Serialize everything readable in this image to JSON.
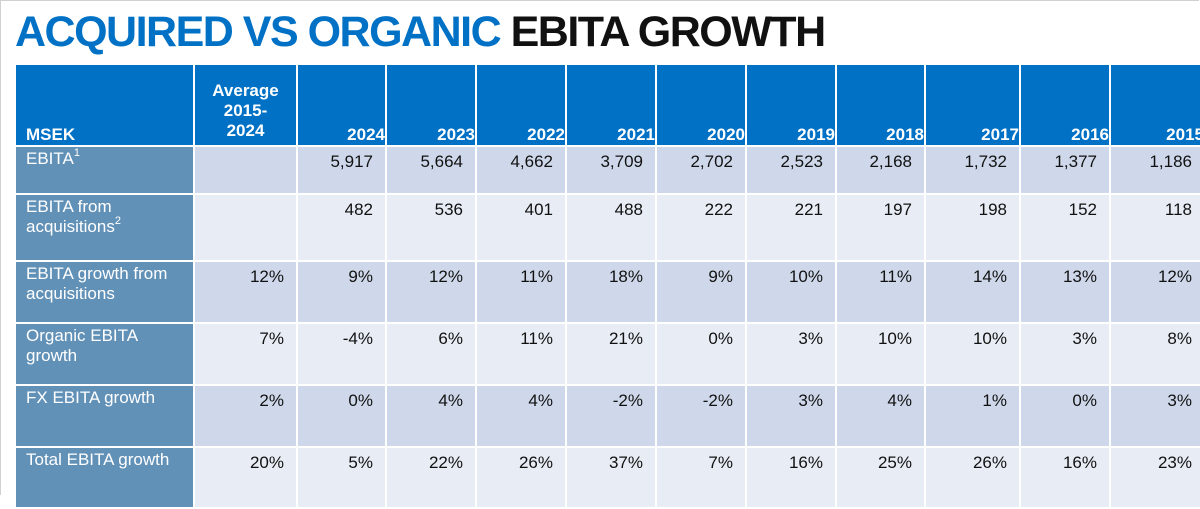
{
  "title": {
    "part1": "ACQUIRED VS ORGANIC",
    "part2": "EBITA GROWTH"
  },
  "colors": {
    "title_blue": "#0071c5",
    "header_bg": "#0071c5",
    "label_bg": "#6291b8",
    "row_dark": "#cfd8ea",
    "row_light": "#e8edf5"
  },
  "table": {
    "header": {
      "label": "MSEK",
      "average": [
        "Average",
        "2015-",
        "2024"
      ],
      "years": [
        "2024",
        "2023",
        "2022",
        "2021",
        "2020",
        "2019",
        "2018",
        "2017",
        "2016",
        "2015"
      ]
    },
    "rows": [
      {
        "label": "EBITA",
        "sup": "1",
        "average": "",
        "values": [
          "5,917",
          "5,664",
          "4,662",
          "3,709",
          "2,702",
          "2,523",
          "2,168",
          "1,732",
          "1,377",
          "1,186"
        ]
      },
      {
        "label": "EBITA from acquisitions",
        "sup": "2",
        "average": "",
        "values": [
          "482",
          "536",
          "401",
          "488",
          "222",
          "221",
          "197",
          "198",
          "152",
          "118"
        ]
      },
      {
        "label": "EBITA growth from acquisitions",
        "sup": "",
        "average": "12%",
        "values": [
          "9%",
          "12%",
          "11%",
          "18%",
          "9%",
          "10%",
          "11%",
          "14%",
          "13%",
          "12%"
        ]
      },
      {
        "label": "Organic EBITA growth",
        "sup": "",
        "average": "7%",
        "values": [
          "-4%",
          "6%",
          "11%",
          "21%",
          "0%",
          "3%",
          "10%",
          "10%",
          "3%",
          "8%"
        ]
      },
      {
        "label": "FX EBITA growth",
        "sup": "",
        "average": "2%",
        "values": [
          "0%",
          "4%",
          "4%",
          "-2%",
          "-2%",
          "3%",
          "4%",
          "1%",
          "0%",
          "3%"
        ]
      },
      {
        "label": "Total EBITA growth",
        "sup": "",
        "average": "20%",
        "values": [
          "5%",
          "22%",
          "26%",
          "37%",
          "7%",
          "16%",
          "25%",
          "26%",
          "16%",
          "23%"
        ]
      }
    ]
  }
}
